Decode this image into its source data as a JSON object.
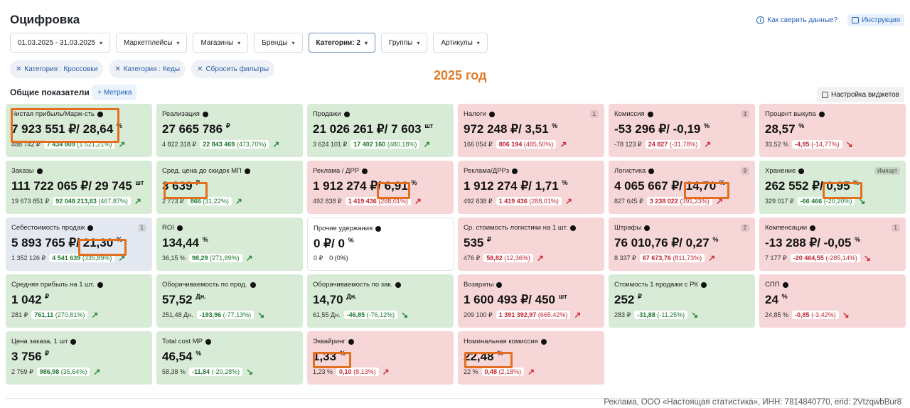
{
  "page_title": "Оцифровка",
  "top_links": {
    "help": "Как сверить данные?",
    "instruction": "Инструкция"
  },
  "filters": [
    {
      "label": "01.03.2025 - 31.03.2025"
    },
    {
      "label": "Маркетплейсы"
    },
    {
      "label": "Магазины"
    },
    {
      "label": "Бренды"
    },
    {
      "label": "Категории: 2"
    },
    {
      "label": "Группы"
    },
    {
      "label": "Артикулы"
    }
  ],
  "chips": [
    "Категория : Кроссовки",
    "Категория : Кеды",
    "Сбросить фильтры"
  ],
  "year_label": "2025 год",
  "section_title": "Общие показатели",
  "metric_button": "Метрика",
  "widget_button": "Настройка виджетов",
  "cards": [
    {
      "label": "Чистая прибыль/Марж-сть",
      "value": "7 923 551 ₽/ 28,64",
      "unit": "%",
      "prev": "488 742 ₽",
      "delta": "7 434 809",
      "pct": "(1 521,21%)",
      "color": "green",
      "trend": "up"
    },
    {
      "label": "Реализация",
      "value": "27 665 786",
      "unit": "₽",
      "prev": "4 822 318 ₽",
      "delta": "22 843 469",
      "pct": "(473,70%)",
      "color": "green",
      "trend": "up"
    },
    {
      "label": "Продажи",
      "value": "21 026 261 ₽/ 7 603",
      "unit": "шт",
      "prev": "3 624 101 ₽",
      "delta": "17 402 160",
      "pct": "(480,18%)",
      "color": "green",
      "trend": "up"
    },
    {
      "label": "Налоги",
      "value": "972 248 ₽/ 3,51",
      "unit": "%",
      "prev": "166 054 ₽",
      "delta": "806 194",
      "pct": "(485,50%)",
      "color": "red",
      "trend": "up",
      "badge": "1"
    },
    {
      "label": "Комиссия",
      "value": "-53 296 ₽/ -0,19",
      "unit": "%",
      "prev": "-78 123 ₽",
      "delta": "24 827",
      "pct": "(-31,78%)",
      "color": "red",
      "trend": "up",
      "badge": "3"
    },
    {
      "label": "Процент выкупа",
      "value": "28,57",
      "unit": "%",
      "prev": "33,52 %",
      "delta": "-4,95",
      "pct": "(-14,77%)",
      "color": "red",
      "trend": "down"
    },
    {
      "label": "Заказы",
      "value": "111 722 065 ₽/ 29 745",
      "unit": "шт",
      "prev": "19 673 851 ₽",
      "delta": "92 048 213,63",
      "pct": "(467,87%)",
      "color": "green",
      "trend": "up"
    },
    {
      "label": "Сред. цена до скидок МП",
      "value": "3 639",
      "unit": "₽",
      "prev": "2 773 ₽",
      "delta": "866",
      "pct": "(31,22%)",
      "color": "green",
      "trend": "up"
    },
    {
      "label": "Реклама / ДРР",
      "value": "1 912 274 ₽/ 6,91",
      "unit": "%",
      "prev": "492 838 ₽",
      "delta": "1 419 436",
      "pct": "(288,01%)",
      "color": "red",
      "trend": "up"
    },
    {
      "label": "Реклама/ДРРз",
      "value": "1 912 274 ₽/ 1,71",
      "unit": "%",
      "prev": "492 838 ₽",
      "delta": "1 419 436",
      "pct": "(288,01%)",
      "color": "red",
      "trend": "up"
    },
    {
      "label": "Логистика",
      "value": "4 065 667 ₽/ 14,70",
      "unit": "%",
      "prev": "827 645 ₽",
      "delta": "3 238 022",
      "pct": "(391,23%)",
      "color": "red",
      "trend": "up",
      "badge": "9"
    },
    {
      "label": "Хранение",
      "value": "262 552 ₽/ 0,95",
      "unit": "%",
      "prev": "329 017 ₽",
      "delta": "-66 466",
      "pct": "(-20,20%)",
      "color": "green",
      "trend": "down",
      "badge": "Импорт"
    },
    {
      "label": "Себестоимость продаж",
      "value": "5 893 765 ₽/ 21,30",
      "unit": "%",
      "prev": "1 352 126 ₽",
      "delta": "4 541 639",
      "pct": "(335,89%)",
      "color": "blue",
      "trend": "up",
      "badge": "1"
    },
    {
      "label": "ROI",
      "value": "134,44",
      "unit": "%",
      "prev": "36,15 %",
      "delta": "98,29",
      "pct": "(271,89%)",
      "color": "green",
      "trend": "up"
    },
    {
      "label": "Прочие удержания",
      "value": "0 ₽/ 0",
      "unit": "%",
      "prev": "0 ₽",
      "delta": "",
      "pct": "0 (0%)",
      "color": "white",
      "trend": ""
    },
    {
      "label": "Ср. стоимость логистики на 1 шт.",
      "value": "535",
      "unit": "₽",
      "prev": "476 ₽",
      "delta": "58,82",
      "pct": "(12,36%)",
      "color": "red",
      "trend": "up"
    },
    {
      "label": "Штрафы",
      "value": "76 010,76 ₽/ 0,27",
      "unit": "%",
      "prev": "8 337 ₽",
      "delta": "67 673,76",
      "pct": "(811,73%)",
      "color": "red",
      "trend": "up",
      "badge": "2"
    },
    {
      "label": "Компенсации",
      "value": "-13 288 ₽/ -0,05",
      "unit": "%",
      "prev": "7 177 ₽",
      "delta": "-20 464,55",
      "pct": "(-285,14%)",
      "color": "red",
      "trend": "down",
      "badge": "1"
    },
    {
      "label": "Средняя прибыль на 1 шт.",
      "value": "1 042",
      "unit": "₽",
      "prev": "281 ₽",
      "delta": "761,11",
      "pct": "(270,81%)",
      "color": "green",
      "trend": "up"
    },
    {
      "label": "Оборачиваемость по прод.",
      "value": "57,52",
      "unit": "Дн.",
      "prev": "251,48 Дн.",
      "delta": "-193,96",
      "pct": "(-77,13%)",
      "color": "green",
      "trend": "down"
    },
    {
      "label": "Оборачиваемость по зак.",
      "value": "14,70",
      "unit": "Дн.",
      "prev": "61,55 Дн.",
      "delta": "-46,85",
      "pct": "(-76,12%)",
      "color": "green",
      "trend": "down"
    },
    {
      "label": "Возвраты",
      "value": "1 600 493 ₽/ 450",
      "unit": "шт",
      "prev": "209 100 ₽",
      "delta": "1 391 392,97",
      "pct": "(665,42%)",
      "color": "red",
      "trend": "up"
    },
    {
      "label": "Стоимость 1 продажи с РК",
      "value": "252",
      "unit": "₽",
      "prev": "283 ₽",
      "delta": "-31,88",
      "pct": "(-11,25%)",
      "color": "green",
      "trend": "down"
    },
    {
      "label": "СПП",
      "value": "24",
      "unit": "%",
      "prev": "24,85 %",
      "delta": "-0,85",
      "pct": "(-3,42%)",
      "color": "red",
      "trend": "down"
    },
    {
      "label": "Цена заказа, 1 шт",
      "value": "3 756",
      "unit": "₽",
      "prev": "2 769 ₽",
      "delta": "986,98",
      "pct": "(35,64%)",
      "color": "green",
      "trend": "up"
    },
    {
      "label": "Total cost MP",
      "value": "46,54",
      "unit": "%",
      "prev": "58,38 %",
      "delta": "-11,84",
      "pct": "(-20,28%)",
      "color": "green",
      "trend": "down"
    },
    {
      "label": "Эквайринг",
      "value": "1,33",
      "unit": "%",
      "prev": "1,23 %",
      "delta": "0,10",
      "pct": "(8,13%)",
      "color": "red",
      "trend": "up"
    },
    {
      "label": "Номинальная комиссия",
      "value": "22,48",
      "unit": "%",
      "prev": "22 %",
      "delta": "0,48",
      "pct": "(2,18%)",
      "color": "red",
      "trend": "up"
    }
  ],
  "footer": "Реклама, ООО «Настоящая статистика», ИНН: 7814840770, erid: 2VtzqwbBur8"
}
